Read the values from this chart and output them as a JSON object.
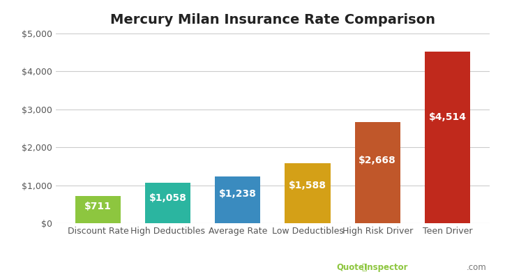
{
  "title": "Mercury Milan Insurance Rate Comparison",
  "categories": [
    "Discount Rate",
    "High Deductibles",
    "Average Rate",
    "Low Deductibles",
    "High Risk Driver",
    "Teen Driver"
  ],
  "values": [
    711,
    1058,
    1238,
    1588,
    2668,
    4514
  ],
  "bar_colors": [
    "#8DC63F",
    "#2BB5A0",
    "#3A8BBF",
    "#D4A017",
    "#C0572A",
    "#C0291C"
  ],
  "labels": [
    "$711",
    "$1,058",
    "$1,238",
    "$1,588",
    "$2,668",
    "$4,514"
  ],
  "ylim": [
    0,
    5000
  ],
  "yticks": [
    0,
    1000,
    2000,
    3000,
    4000,
    5000
  ],
  "ytick_labels": [
    "$0",
    "$1,000",
    "$2,000",
    "$3,000",
    "$4,000",
    "$5,000"
  ],
  "background_color": "#ffffff",
  "grid_color": "#cccccc",
  "title_fontsize": 14,
  "label_fontsize": 10,
  "tick_fontsize": 9,
  "watermark_green": "QuoteInspector",
  "watermark_gray": ".com"
}
